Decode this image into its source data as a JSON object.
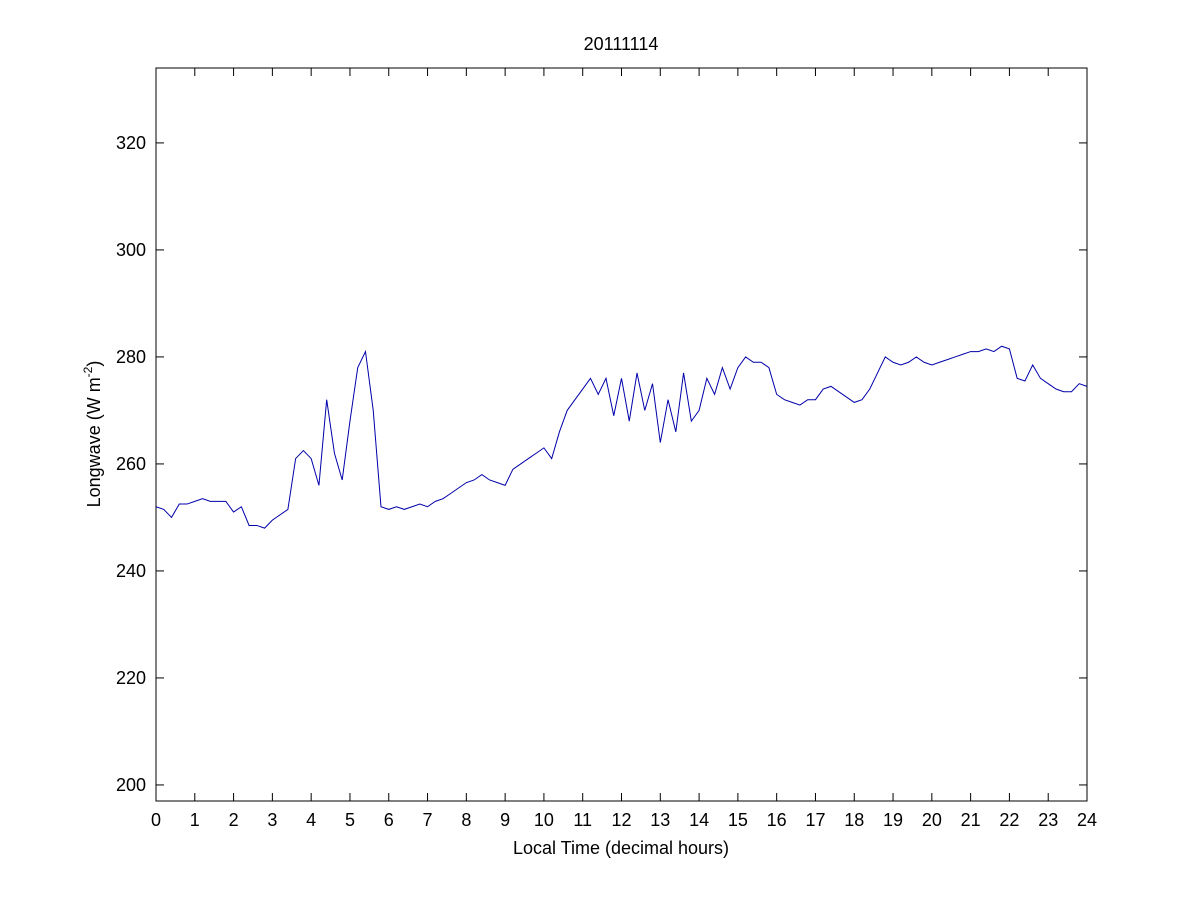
{
  "chart_data": {
    "type": "line",
    "title": "20111114",
    "xlabel": "Local Time (decimal hours)",
    "ylabel": [
      "Longwave (W m",
      "-2",
      ")"
    ],
    "x": [
      0,
      0.2,
      0.4,
      0.6,
      0.8,
      1,
      1.2,
      1.4,
      1.6,
      1.8,
      2,
      2.2,
      2.4,
      2.6,
      2.8,
      3,
      3.2,
      3.4,
      3.6,
      3.8,
      4,
      4.2,
      4.4,
      4.6,
      4.8,
      5,
      5.2,
      5.4,
      5.6,
      5.8,
      6,
      6.2,
      6.4,
      6.6,
      6.8,
      7,
      7.2,
      7.4,
      7.6,
      7.8,
      8,
      8.2,
      8.4,
      8.6,
      8.8,
      9,
      9.2,
      9.4,
      9.6,
      9.8,
      10,
      10.2,
      10.4,
      10.6,
      10.8,
      11,
      11.2,
      11.4,
      11.6,
      11.8,
      12,
      12.2,
      12.4,
      12.6,
      12.8,
      13,
      13.2,
      13.4,
      13.6,
      13.8,
      14,
      14.2,
      14.4,
      14.6,
      14.8,
      15,
      15.2,
      15.4,
      15.6,
      15.8,
      16,
      16.2,
      16.4,
      16.6,
      16.8,
      17,
      17.2,
      17.4,
      17.6,
      17.8,
      18,
      18.2,
      18.4,
      18.6,
      18.8,
      19,
      19.2,
      19.4,
      19.6,
      19.8,
      20,
      20.2,
      20.4,
      20.6,
      20.8,
      21,
      21.2,
      21.4,
      21.6,
      21.8,
      22,
      22.2,
      22.4,
      22.6,
      22.8,
      23,
      23.2,
      23.4,
      23.6,
      23.8,
      24
    ],
    "series": [
      {
        "name": "Longwave",
        "color": "#0000aa",
        "values": [
          252,
          251.5,
          250,
          252.5,
          252.5,
          253,
          253.5,
          253,
          253,
          253,
          251,
          252,
          248.5,
          248.5,
          248,
          249.5,
          250.5,
          251.5,
          261,
          262.5,
          261,
          256,
          272,
          262,
          257,
          268,
          278,
          281,
          270,
          252,
          251.5,
          252,
          251.5,
          252,
          252.5,
          252,
          253,
          253.5,
          254.5,
          255.5,
          256.5,
          257,
          258,
          257,
          256.5,
          256,
          259,
          260,
          261,
          262,
          263,
          261,
          266,
          270,
          272,
          274,
          276,
          273,
          276,
          269,
          276,
          268,
          277,
          270,
          275,
          264,
          272,
          266,
          277,
          268,
          270,
          276,
          273,
          278,
          274,
          278,
          280,
          279,
          279,
          278,
          273,
          272,
          271.5,
          271,
          272,
          272,
          274,
          274.5,
          273.5,
          272.5,
          271.5,
          272,
          274,
          277,
          280,
          279,
          278.5,
          279,
          280,
          279,
          278.5,
          279,
          279.5,
          280,
          280.5,
          281,
          281,
          281.5,
          281,
          282,
          281.5,
          276,
          275.5,
          278.5,
          276,
          275,
          274,
          273.5,
          273.5,
          275,
          274.5
        ]
      }
    ],
    "xlim": [
      0,
      24
    ],
    "ylim": [
      197,
      334
    ],
    "xticks": [
      0,
      1,
      2,
      3,
      4,
      5,
      6,
      7,
      8,
      9,
      10,
      11,
      12,
      13,
      14,
      15,
      16,
      17,
      18,
      19,
      20,
      21,
      22,
      23,
      24
    ],
    "yticks": [
      200,
      220,
      240,
      260,
      280,
      300,
      320
    ],
    "grid": false
  }
}
